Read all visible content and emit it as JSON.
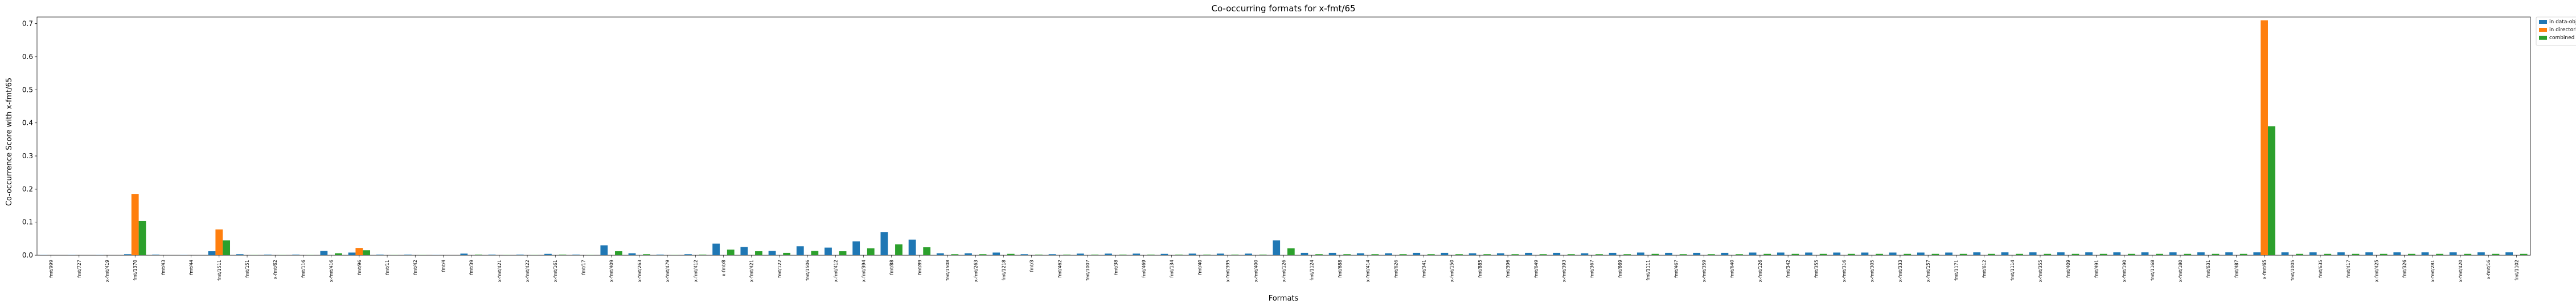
{
  "chart_data": {
    "type": "bar",
    "title": "Co-occurring formats for x-fmt/65",
    "xlabel": "Formats",
    "ylabel": "Co-occurrence Score with x-fmt/65",
    "ylim": [
      0,
      0.72
    ],
    "yticks": [
      "0.0",
      "0.1",
      "0.2",
      "0.3",
      "0.4",
      "0.5",
      "0.6",
      "0.7"
    ],
    "grid": false,
    "legend_position": "top-right",
    "categories": [
      "fmt/999",
      "fmt/727",
      "x-fmt/419",
      "fmt/1370",
      "fmt/43",
      "fmt/44",
      "fmt/1511",
      "fmt/151",
      "x-fmt/62",
      "fmt/116",
      "x-fmt/416",
      "fmt/96",
      "fmt/11",
      "fmt/42",
      "fmt/4",
      "fmt/39",
      "x-fmt/421",
      "x-fmt/422",
      "x-fmt/161",
      "fmt/17",
      "x-fmt/409",
      "x-fmt/263",
      "x-fmt/479",
      "x-fmt/412",
      "x-fmt/8",
      "x-fmt/421",
      "fmt/122",
      "fmt/1506",
      "x-fmt/412",
      "x-fmt/394",
      "fmt/88",
      "fmt/89",
      "fmt/1508",
      "x-fmt/263",
      "fmt/1218",
      "fmt/3",
      "fmt/462",
      "fmt/1007",
      "fmt/38",
      "fmt/469",
      "fmt/134",
      "fmt/40",
      "x-fmt/395",
      "x-fmt/400",
      "x-fmt/126",
      "fmt/1124",
      "fmt/688",
      "x-fmt/414",
      "fmt/626",
      "fmt/341",
      "x-fmt/150",
      "fmt/885",
      "fmt/396",
      "fmt/649",
      "x-fmt/393",
      "fmt/367",
      "fmt/669",
      "fmt/1111",
      "fmt/467",
      "x-fmt/359",
      "fmt/640",
      "x-fmt/126",
      "fmt/342",
      "fmt/355",
      "x-fmt/316",
      "x-fmt/305",
      "x-fmt/333",
      "x-fmt/157",
      "fmt/1171",
      "fmt/612",
      "fmt/1114",
      "x-fmt/355",
      "fmt/409",
      "fmt/491",
      "x-fmt/190",
      "fmt/1168",
      "x-fmt/180",
      "fmt/631",
      "fmt/487",
      "x-fmt/65",
      "fmt/1005",
      "fmt/635",
      "fmt/417",
      "x-fmt/425",
      "fmt/326",
      "x-fmt/281",
      "x-fmt/420",
      "x-fmt/16",
      "fmt/1102"
    ],
    "series": [
      {
        "name": "in data-objects",
        "color": "#1f77b4",
        "values": [
          0.001,
          0.001,
          0.001,
          0.003,
          0.002,
          0.001,
          0.012,
          0.003,
          0.002,
          0.002,
          0.013,
          0.008,
          0.002,
          0.002,
          0.001,
          0.005,
          0.002,
          0.002,
          0.004,
          0.002,
          0.03,
          0.006,
          0.002,
          0.003,
          0.035,
          0.025,
          0.013,
          0.027,
          0.023,
          0.042,
          0.07,
          0.047,
          0.006,
          0.006,
          0.008,
          0.003,
          0.003,
          0.005,
          0.005,
          0.005,
          0.004,
          0.005,
          0.005,
          0.005,
          0.045,
          0.007,
          0.007,
          0.006,
          0.006,
          0.007,
          0.007,
          0.006,
          0.006,
          0.007,
          0.007,
          0.006,
          0.007,
          0.008,
          0.007,
          0.007,
          0.007,
          0.008,
          0.008,
          0.008,
          0.008,
          0.008,
          0.008,
          0.008,
          0.008,
          0.009,
          0.009,
          0.009,
          0.009,
          0.009,
          0.009,
          0.009,
          0.009,
          0.009,
          0.009,
          0.009,
          0.009,
          0.009,
          0.009,
          0.009,
          0.009,
          0.009,
          0.009,
          0.009,
          0.009
        ]
      },
      {
        "name": "in directories",
        "color": "#ff7f0e",
        "values": [
          0.0,
          0.0,
          0.0,
          0.185,
          0.0,
          0.0,
          0.078,
          0.0,
          0.0,
          0.0,
          0.0,
          0.022,
          0.0,
          0.0,
          0.0,
          0.0,
          0.0,
          0.0,
          0.0,
          0.0,
          0.0,
          0.0,
          0.0,
          0.0,
          0.0,
          0.0,
          0.0,
          0.0,
          0.0,
          0.0,
          0.0,
          0.0,
          0.0,
          0.0,
          0.0,
          0.0,
          0.0,
          0.0,
          0.0,
          0.0,
          0.0,
          0.0,
          0.0,
          0.0,
          0.0,
          0.0,
          0.0,
          0.0,
          0.0,
          0.0,
          0.0,
          0.0,
          0.0,
          0.0,
          0.0,
          0.0,
          0.0,
          0.0,
          0.0,
          0.0,
          0.0,
          0.0,
          0.0,
          0.0,
          0.0,
          0.0,
          0.0,
          0.0,
          0.0,
          0.0,
          0.0,
          0.0,
          0.0,
          0.0,
          0.0,
          0.0,
          0.0,
          0.0,
          0.0,
          0.71,
          0.0,
          0.0,
          0.0,
          0.0,
          0.0,
          0.0,
          0.0,
          0.0,
          0.0
        ]
      },
      {
        "name": "combined",
        "color": "#2ca02c",
        "values": [
          0.0,
          0.0,
          0.0,
          0.103,
          0.0,
          0.0,
          0.045,
          0.001,
          0.001,
          0.001,
          0.006,
          0.015,
          0.001,
          0.001,
          0.0,
          0.002,
          0.001,
          0.001,
          0.002,
          0.001,
          0.012,
          0.003,
          0.001,
          0.002,
          0.017,
          0.012,
          0.007,
          0.013,
          0.012,
          0.021,
          0.033,
          0.024,
          0.003,
          0.003,
          0.004,
          0.002,
          0.002,
          0.002,
          0.002,
          0.002,
          0.002,
          0.002,
          0.002,
          0.002,
          0.021,
          0.003,
          0.003,
          0.003,
          0.003,
          0.003,
          0.003,
          0.003,
          0.003,
          0.003,
          0.003,
          0.003,
          0.003,
          0.004,
          0.003,
          0.003,
          0.003,
          0.004,
          0.004,
          0.004,
          0.004,
          0.004,
          0.004,
          0.004,
          0.004,
          0.004,
          0.004,
          0.004,
          0.004,
          0.004,
          0.004,
          0.004,
          0.004,
          0.004,
          0.004,
          0.39,
          0.004,
          0.004,
          0.004,
          0.004,
          0.004,
          0.004,
          0.004,
          0.004,
          0.004
        ]
      }
    ]
  }
}
